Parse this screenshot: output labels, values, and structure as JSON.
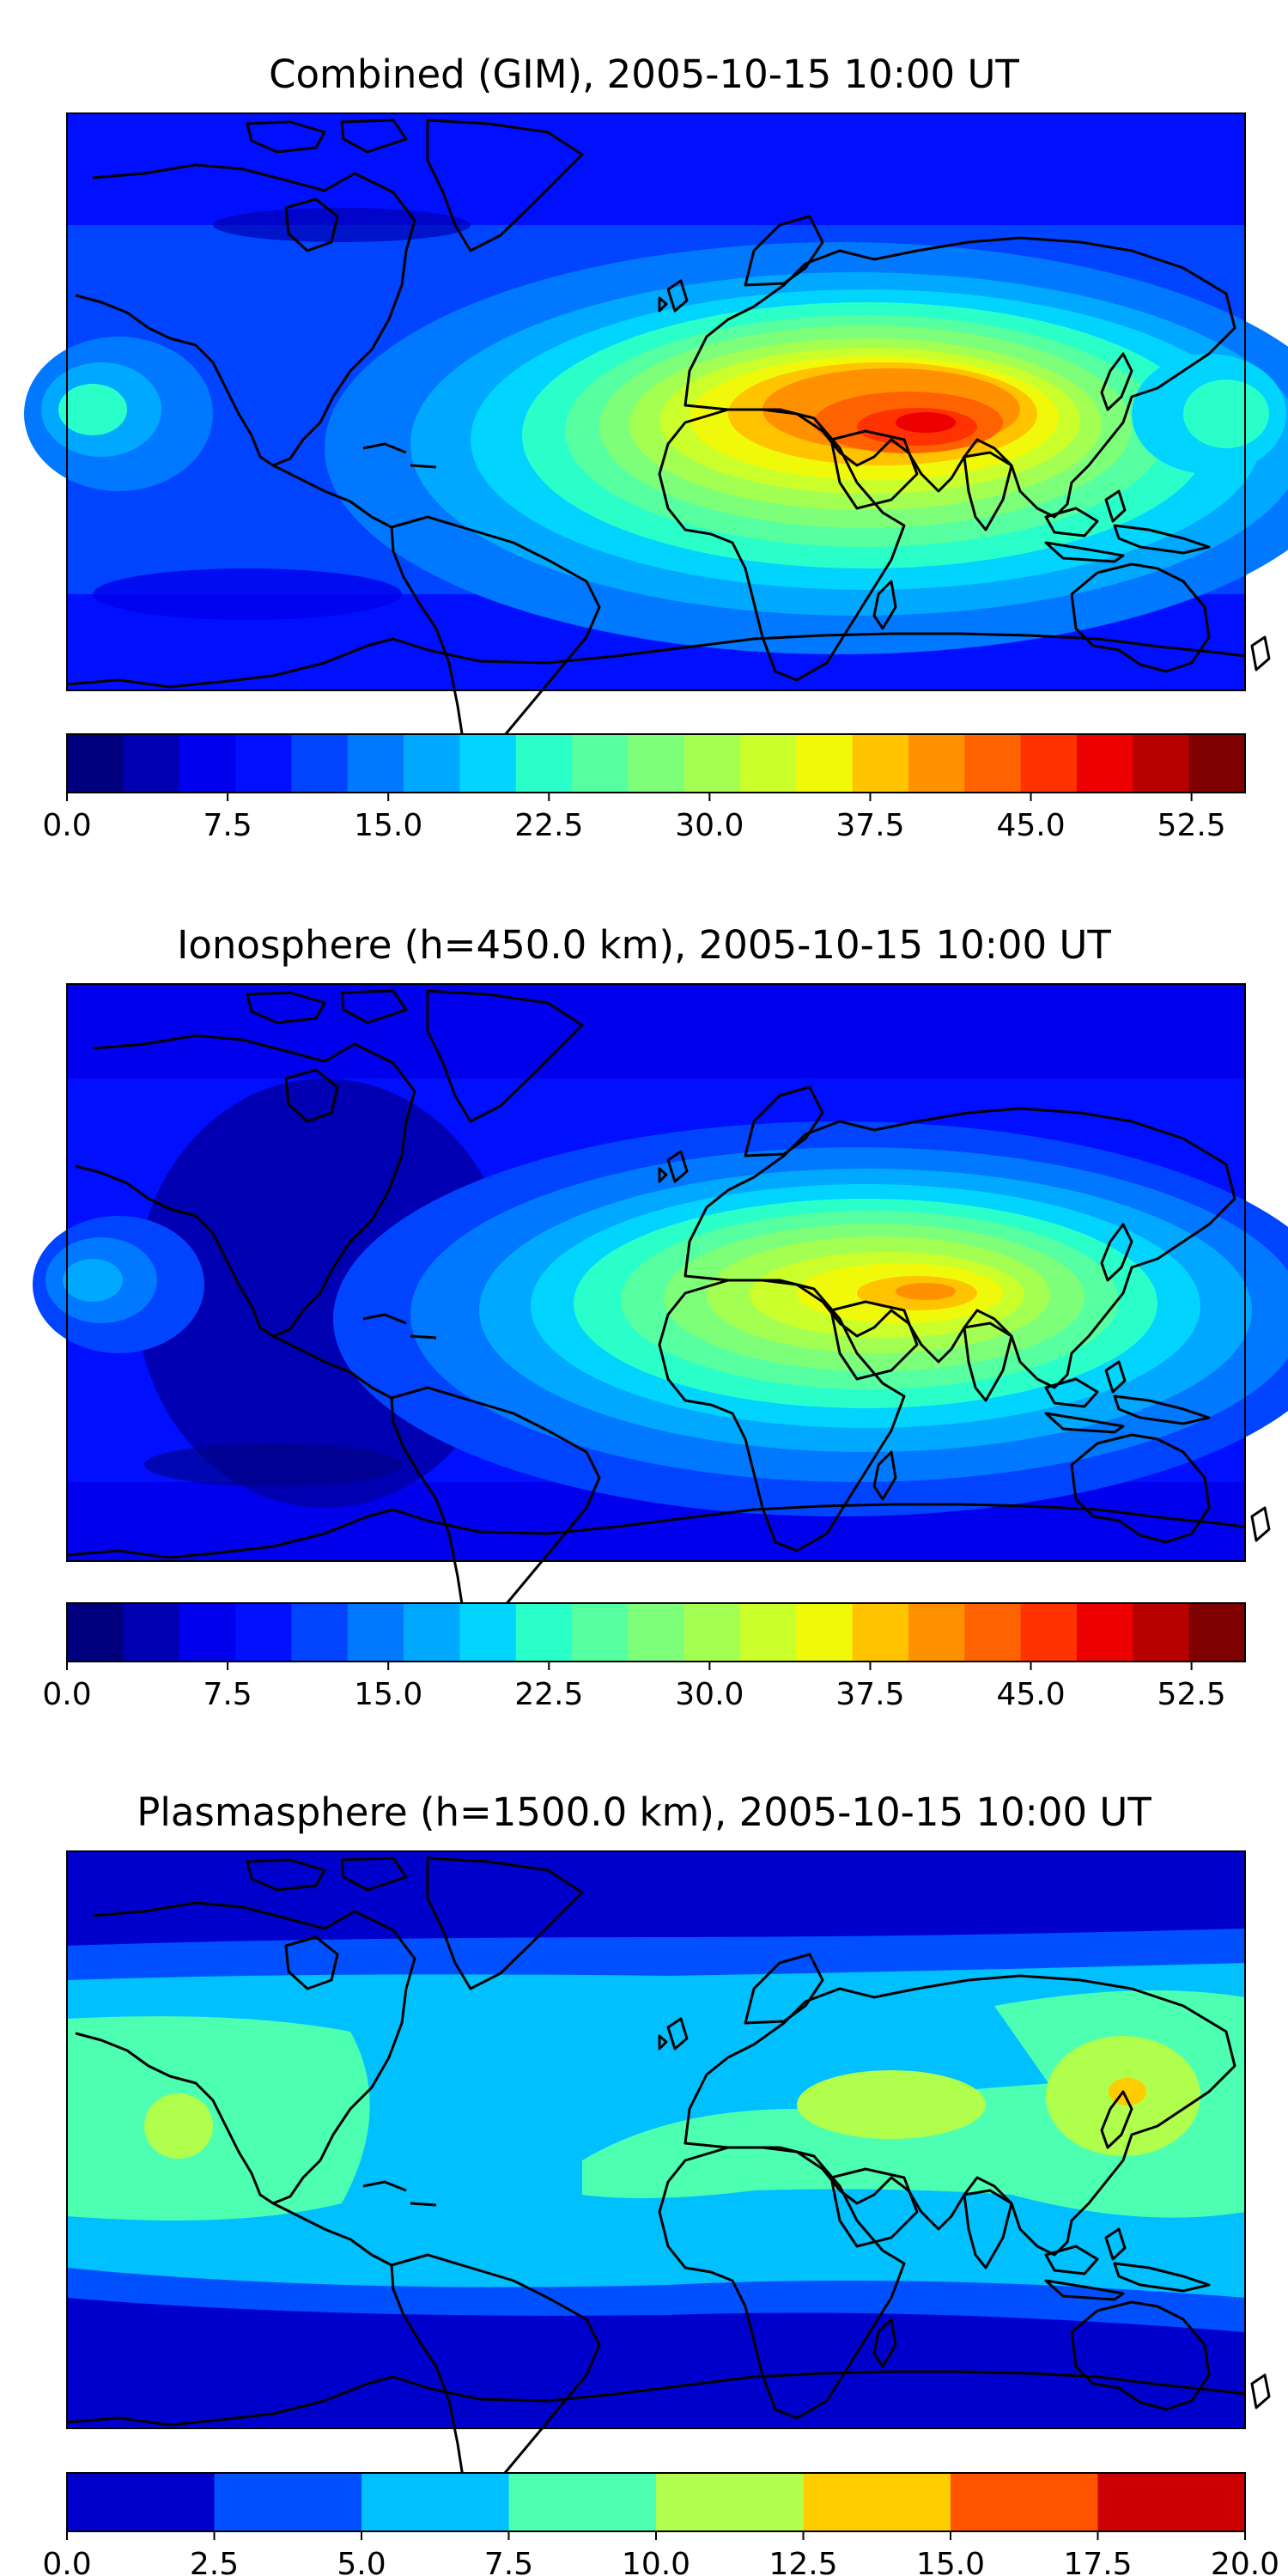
{
  "panels": [
    {
      "title": "Combined (GIM), 2005-10-15 10:00 UT",
      "colorbar": {
        "ticks": [
          "0.0",
          "7.5",
          "15.0",
          "22.5",
          "30.0",
          "37.5",
          "45.0",
          "52.5"
        ],
        "tick_values": [
          0,
          7.5,
          15,
          22.5,
          30,
          37.5,
          45,
          52.5
        ],
        "vmin": 0,
        "vmax": 55,
        "colors": [
          "#00007f",
          "#0000b2",
          "#0000ec",
          "#0010ff",
          "#0044ff",
          "#0078ff",
          "#00a8ff",
          "#00d4ff",
          "#2bffc9",
          "#56ffa0",
          "#7dff7a",
          "#a4ff53",
          "#cbff2c",
          "#f1f90b",
          "#ffc300",
          "#ff9100",
          "#ff6200",
          "#ff3200",
          "#ec0000",
          "#b70000",
          "#7f0000"
        ]
      }
    },
    {
      "title": "Ionosphere  (h=450.0 km), 2005-10-15 10:00 UT",
      "colorbar": {
        "ticks": [
          "0.0",
          "7.5",
          "15.0",
          "22.5",
          "30.0",
          "37.5",
          "45.0",
          "52.5"
        ],
        "tick_values": [
          0,
          7.5,
          15,
          22.5,
          30,
          37.5,
          45,
          52.5
        ],
        "vmin": 0,
        "vmax": 55,
        "colors": [
          "#00007f",
          "#0000b2",
          "#0000ec",
          "#0010ff",
          "#0044ff",
          "#0078ff",
          "#00a8ff",
          "#00d4ff",
          "#2bffc9",
          "#56ffa0",
          "#7dff7a",
          "#a4ff53",
          "#cbff2c",
          "#f1f90b",
          "#ffc300",
          "#ff9100",
          "#ff6200",
          "#ff3200",
          "#ec0000",
          "#b70000",
          "#7f0000"
        ]
      }
    },
    {
      "title": "Plasmasphere (h=1500.0 km), 2005-10-15 10:00 UT",
      "colorbar": {
        "ticks": [
          "0.0",
          "2.5",
          "5.0",
          "7.5",
          "10.0",
          "12.5",
          "15.0",
          "17.5",
          "20.0"
        ],
        "tick_values": [
          0,
          2.5,
          5,
          7.5,
          10,
          12.5,
          15,
          17.5,
          20
        ],
        "vmin": 0,
        "vmax": 20,
        "colors": [
          "#0000cc",
          "#0050ff",
          "#00c0ff",
          "#4dffb0",
          "#b0ff4d",
          "#ffcc00",
          "#ff5500",
          "#cc0000"
        ]
      }
    }
  ]
}
